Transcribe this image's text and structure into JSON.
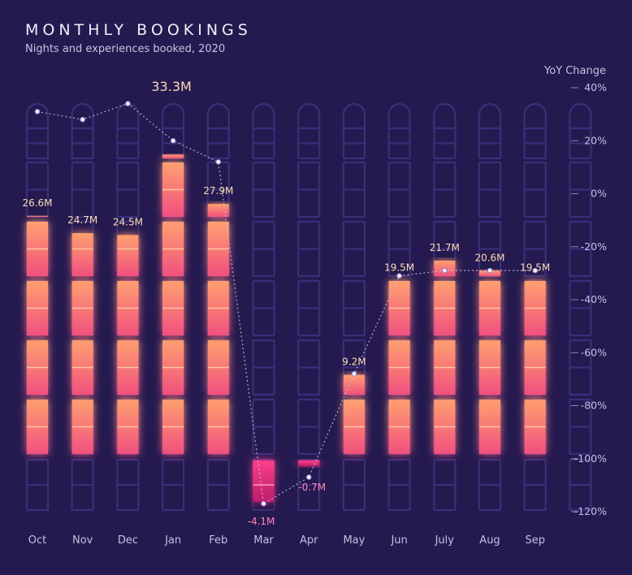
{
  "title": "MONTHLY BOOKINGS",
  "subtitle": "Nights and experiences booked, 2020",
  "colors": {
    "background": "#251a4f",
    "window_outline": "#3a2f78",
    "bar_top": "#ffa070",
    "bar_bottom": "#f0507e",
    "negative_top": "#ff3f8a",
    "negative_bottom": "#b81e6a",
    "value_label": "#fbdcb4",
    "negative_label": "#ff86b7",
    "axis_text": "#c6bfe2"
  },
  "chart_data": {
    "type": "bar",
    "categories": [
      "Oct",
      "Nov",
      "Dec",
      "Jan",
      "Feb",
      "Mar",
      "Apr",
      "May",
      "Jun",
      "July",
      "Aug",
      "Sep"
    ],
    "series": [
      {
        "values": [
          26.6,
          24.7,
          24.5,
          33.3,
          27.9,
          -4.1,
          -0.7,
          9.2,
          19.5,
          21.7,
          20.6,
          19.5
        ]
      },
      {
        "axis": "right",
        "values": [
          31,
          28,
          34,
          20,
          12,
          -117,
          -107,
          -68,
          -31,
          -29,
          -29,
          -29
        ]
      }
    ],
    "value_labels": [
      "26.6M",
      "24.7M",
      "24.5M",
      "33.3M",
      "27.9M",
      "-4.1M",
      "-0.7M",
      "9.2M",
      "19.5M",
      "21.7M",
      "20.6M",
      "19.5M"
    ],
    "y2_label": "YoY Change",
    "y2_ticks": [
      "40%",
      "20%",
      "0%",
      "-20%",
      "-40%",
      "-60%",
      "-80%",
      "-100%",
      "-120%"
    ],
    "y2lim": [
      -120,
      40
    ],
    "grid": false
  }
}
